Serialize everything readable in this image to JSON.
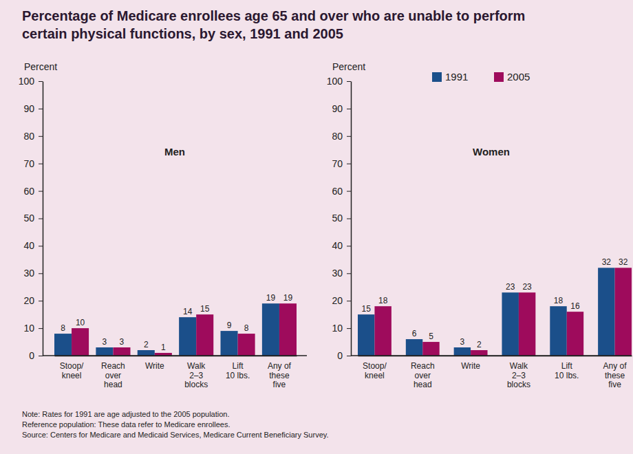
{
  "title": "Percentage of Medicare enrollees age 65 and over who are unable to perform\ncertain physical functions, by sex, 1991 and 2005",
  "notes": [
    "Note: Rates for 1991 are age adjusted to the 2005 population.",
    "Reference population: These data refer to Medicare enrollees.",
    "Source: Centers for Medicare and Medicaid Services, Medicare Current Beneficiary Survey."
  ],
  "chart_data": [
    {
      "type": "bar",
      "title": "Men",
      "y_label": "Percent",
      "categories": [
        "Stoop/\nkneel",
        "Reach\nover\nhead",
        "Write",
        "Walk\n2–3\nblocks",
        "Lift\n10 lbs.",
        "Any of\nthese\nfive"
      ],
      "series": [
        {
          "color": "#1b4f8a",
          "values": [
            8,
            3,
            2,
            14,
            9,
            19
          ]
        },
        {
          "color": "#9e0b5c",
          "values": [
            10,
            3,
            1,
            15,
            8,
            19
          ]
        }
      ],
      "ylim": [
        0,
        100
      ],
      "yticks": [
        0,
        10,
        20,
        30,
        40,
        50,
        60,
        70,
        80,
        90,
        100
      ],
      "grid": false,
      "data_labels": true
    },
    {
      "type": "bar",
      "title": "Women",
      "y_label": "Percent",
      "categories": [
        "Stoop/\nkneel",
        "Reach\nover\nhead",
        "Write",
        "Walk\n2–3\nblocks",
        "Lift\n10 lbs.",
        "Any of\nthese\nfive"
      ],
      "series": [
        {
          "name": "1991",
          "color": "#1b4f8a",
          "values": [
            15,
            6,
            3,
            23,
            18,
            32
          ]
        },
        {
          "name": "2005",
          "color": "#9e0b5c",
          "values": [
            18,
            5,
            2,
            23,
            16,
            32
          ]
        }
      ],
      "ylim": [
        0,
        100
      ],
      "yticks": [
        0,
        10,
        20,
        30,
        40,
        50,
        60,
        70,
        80,
        90,
        100
      ],
      "grid": false,
      "data_labels": true,
      "legend": "top-right"
    }
  ]
}
